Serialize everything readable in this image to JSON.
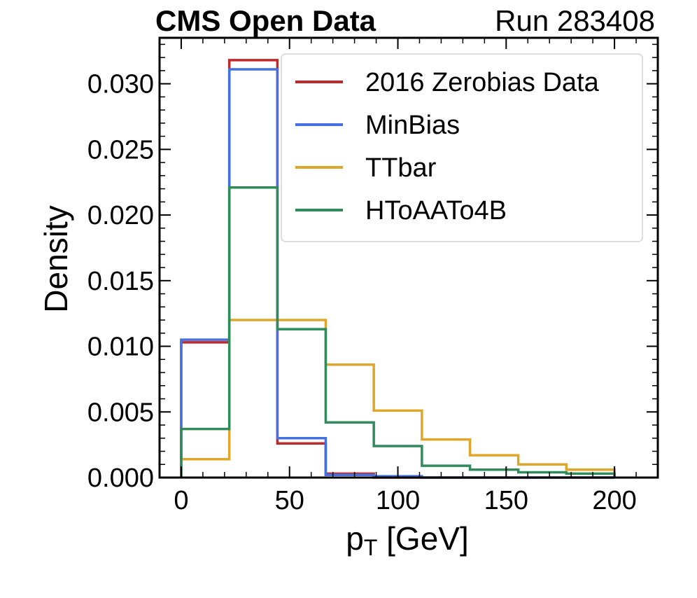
{
  "chart_data": {
    "type": "step-histogram",
    "header_left": "CMS Open Data",
    "header_right": "Run 283408",
    "xlabel": "p",
    "xlabel_sub": "T",
    "xlabel_unit": " [GeV]",
    "ylabel": "Density",
    "xlim": [
      -10,
      220
    ],
    "ylim": [
      0,
      0.0335
    ],
    "x_ticks": [
      0,
      50,
      100,
      150,
      200
    ],
    "y_ticks": [
      0.0,
      0.005,
      0.01,
      0.015,
      0.02,
      0.025,
      0.03
    ],
    "y_tick_labels": [
      "0.000",
      "0.005",
      "0.010",
      "0.015",
      "0.020",
      "0.025",
      "0.030"
    ],
    "bin_edges": [
      0,
      22.2,
      44.4,
      66.7,
      88.9,
      111.1,
      133.3,
      155.6,
      177.8,
      200
    ],
    "legend_position": "upper right",
    "series": [
      {
        "name": "2016 Zerobias Data",
        "color": "#c0282a",
        "values": [
          0.0103,
          0.0318,
          0.0026,
          0.0003,
          0.0,
          0.0,
          0.0,
          0.0,
          0.0
        ]
      },
      {
        "name": "MinBias",
        "color": "#4470e0",
        "values": [
          0.0105,
          0.0311,
          0.003,
          0.0002,
          0.0001,
          0.0,
          0.0,
          0.0,
          0.0
        ]
      },
      {
        "name": "TTbar",
        "color": "#e0a62c",
        "values": [
          0.0014,
          0.012,
          0.012,
          0.0086,
          0.0051,
          0.0029,
          0.0017,
          0.001,
          0.0006
        ]
      },
      {
        "name": "HToAATo4B",
        "color": "#2f8c5a",
        "values": [
          0.0037,
          0.0221,
          0.0113,
          0.0042,
          0.0024,
          0.0009,
          0.0006,
          0.0004,
          0.0003
        ]
      }
    ]
  }
}
